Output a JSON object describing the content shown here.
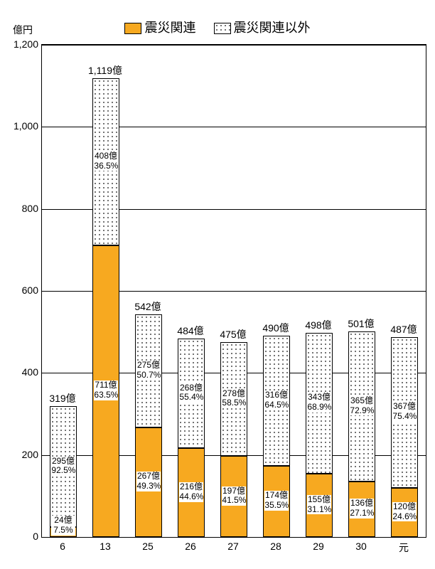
{
  "chart": {
    "type": "stacked-bar",
    "y_axis_unit": "億円",
    "y_max": 1200,
    "y_tick_step": 200,
    "y_ticks": [
      0,
      200,
      400,
      600,
      800,
      1000,
      1200
    ],
    "y_tick_labels": [
      "0",
      "200",
      "400",
      "600",
      "800",
      "1,000",
      "1,200"
    ],
    "background_color": "#ffffff",
    "grid_color": "#000000",
    "bar_width_ratio": 0.62,
    "legend": {
      "series1": {
        "label": "震災関連",
        "fill": "#f7a920",
        "border": "#000000"
      },
      "series2": {
        "label": "震災関連以外",
        "fill": "#ffffff",
        "border": "#000000",
        "pattern": "dots"
      }
    },
    "categories": [
      "6",
      "13",
      "25",
      "26",
      "27",
      "28",
      "29",
      "30",
      "元"
    ],
    "bars": [
      {
        "total": 319,
        "total_label": "319億",
        "s1_val": 24,
        "s1_label": "24億\n7.5%",
        "s2_val": 295,
        "s2_label": "295億\n92.5%"
      },
      {
        "total": 1119,
        "total_label": "1,119億",
        "s1_val": 711,
        "s1_label": "711億\n63.5%",
        "s2_val": 408,
        "s2_label": "408億\n36.5%"
      },
      {
        "total": 542,
        "total_label": "542億",
        "s1_val": 267,
        "s1_label": "267億\n49.3%",
        "s2_val": 275,
        "s2_label": "275億\n50.7%"
      },
      {
        "total": 484,
        "total_label": "484億",
        "s1_val": 216,
        "s1_label": "216億\n44.6%",
        "s2_val": 268,
        "s2_label": "268億\n55.4%"
      },
      {
        "total": 475,
        "total_label": "475億",
        "s1_val": 197,
        "s1_label": "197億\n41.5%",
        "s2_val": 278,
        "s2_label": "278億\n58.5%"
      },
      {
        "total": 490,
        "total_label": "490億",
        "s1_val": 174,
        "s1_label": "174億\n35.5%",
        "s2_val": 316,
        "s2_label": "316億\n64.5%"
      },
      {
        "total": 498,
        "total_label": "498億",
        "s1_val": 155,
        "s1_label": "155億\n31.1%",
        "s2_val": 343,
        "s2_label": "343億\n68.9%"
      },
      {
        "total": 501,
        "total_label": "501億",
        "s1_val": 136,
        "s1_label": "136億\n27.1%",
        "s2_val": 365,
        "s2_label": "365億\n72.9%"
      },
      {
        "total": 487,
        "total_label": "487億",
        "s1_val": 120,
        "s1_label": "120億\n24.6%",
        "s2_val": 367,
        "s2_label": "367億\n75.4%"
      }
    ]
  }
}
